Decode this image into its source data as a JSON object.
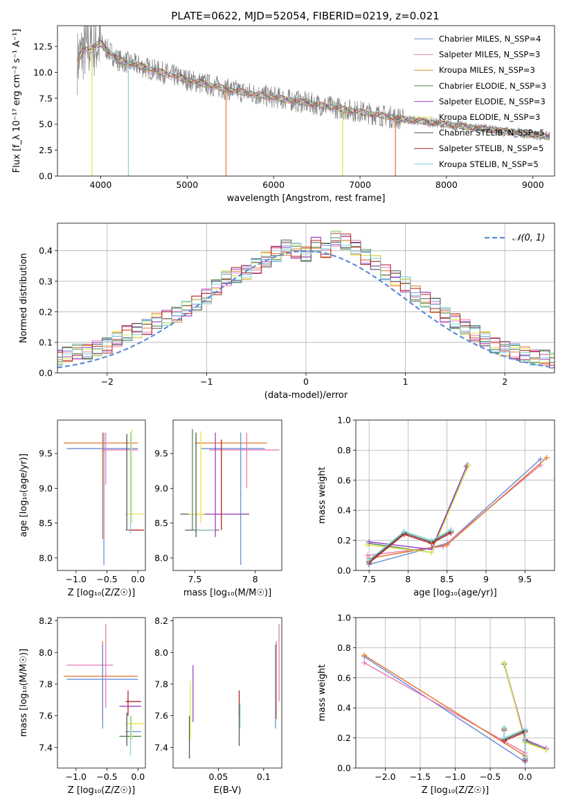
{
  "chart_data": [
    {
      "id": "spectrum",
      "type": "line",
      "title": "PLATE=0622, MJD=52054, FIBERID=0219, z=0.021",
      "xlabel": "wavelength [Angstrom, rest frame]",
      "ylabel": "Flux [f_λ 10⁻¹⁷ erg cm⁻² s⁻¹ A⁻¹]",
      "xlim": [
        3500,
        9250
      ],
      "ylim": [
        0,
        14.5
      ],
      "xticks": [
        4000,
        5000,
        6000,
        7000,
        8000,
        9000
      ],
      "yticks": [
        0.0,
        2.5,
        5.0,
        7.5,
        10.0,
        12.5
      ],
      "legend_position": "top-right",
      "data_envelope": {
        "x": [
          3730,
          3800,
          3900,
          4000,
          4200,
          4500,
          5000,
          5500,
          6000,
          6500,
          7000,
          7500,
          8000,
          8500,
          9000,
          9200
        ],
        "y": [
          11.0,
          12.2,
          12.4,
          12.8,
          11.2,
          10.5,
          9.3,
          8.3,
          7.6,
          6.9,
          6.2,
          5.5,
          5.0,
          4.5,
          4.0,
          3.8
        ]
      },
      "series": [
        {
          "name": "Chabrier MILES, N_SSP=4",
          "color": "#6b8fd6"
        },
        {
          "name": "Salpeter MILES, N_SSP=3",
          "color": "#e87ab5"
        },
        {
          "name": "Kroupa MILES, N_SSP=3",
          "color": "#c8962a"
        },
        {
          "name": "Chabrier ELODIE, N_SSP=3",
          "color": "#4f8a4f"
        },
        {
          "name": "Salpeter ELODIE, N_SSP=3",
          "color": "#9b3fc6"
        },
        {
          "name": "Kroupa ELODIE, N_SSP=3",
          "color": "#e3e34a"
        },
        {
          "name": "Chabrier STELIB, N_SSP=5",
          "color": "#555555"
        },
        {
          "name": "Salpeter STELIB, N_SSP=5",
          "color": "#b22222"
        },
        {
          "name": "Kroupa STELIB, N_SSP=5",
          "color": "#7fd3d6"
        }
      ]
    },
    {
      "id": "residuals",
      "type": "line",
      "xlabel": "(data-model)/error",
      "ylabel": "Normed distribution",
      "xlim": [
        -2.5,
        2.5
      ],
      "ylim": [
        0,
        0.49
      ],
      "xticks": [
        -2,
        -1,
        0,
        1,
        2
      ],
      "yticks": [
        0.0,
        0.1,
        0.2,
        0.3,
        0.4
      ],
      "grid": true,
      "legend_position": "top-right",
      "legend_label": "𝒩(0, 1)",
      "bin_width": 0.1,
      "histogram": [
        0.02,
        0.03,
        0.05,
        0.05,
        0.06,
        0.07,
        0.07,
        0.08,
        0.09,
        0.11,
        0.13,
        0.14,
        0.15,
        0.17,
        0.18,
        0.19,
        0.21,
        0.23,
        0.25,
        0.28,
        0.31,
        0.32,
        0.33,
        0.35,
        0.37,
        0.39,
        0.41,
        0.4,
        0.39,
        0.42,
        0.4,
        0.44,
        0.43,
        0.41,
        0.38,
        0.36,
        0.33,
        0.31,
        0.29,
        0.26,
        0.24,
        0.22,
        0.19,
        0.17,
        0.15,
        0.13,
        0.11,
        0.09,
        0.08,
        0.07,
        0.06,
        0.05,
        0.05,
        0.04,
        0.03,
        0.03,
        0.02
      ]
    },
    {
      "id": "z-vs-age",
      "type": "scatter",
      "xlabel": "Z [log₁₀(Z/Z☉)]",
      "ylabel": "age  [log₁₀(age/yr)]",
      "xlim": [
        -1.3,
        0.12
      ],
      "ylim": [
        7.82,
        9.98
      ],
      "xticks": [
        -1.0,
        -0.5,
        0.0
      ],
      "xticklabels": [
        "−1.0",
        "−0.5",
        "0.0"
      ],
      "yticks": [
        8.0,
        8.5,
        9.0,
        9.5
      ],
      "segments": [
        {
          "c": "#e4762c",
          "x": [
            -1.2,
            0.0
          ],
          "y": [
            9.65,
            9.65
          ]
        },
        {
          "c": "#6b8fd6",
          "x": [
            -1.15,
            0.0
          ],
          "y": [
            9.57,
            9.57
          ]
        },
        {
          "c": "#e87ab5",
          "x": [
            -0.58,
            0.0
          ],
          "y": [
            9.55,
            9.55
          ]
        },
        {
          "c": "#e3e34a",
          "x": [
            -0.2,
            0.1
          ],
          "y": [
            8.63,
            8.63
          ]
        },
        {
          "c": "#6b8fd6",
          "x": [
            -0.2,
            0.05
          ],
          "y": [
            8.4,
            8.4
          ]
        },
        {
          "c": "#b22222",
          "x": [
            -0.15,
            0.1
          ],
          "y": [
            8.4,
            8.4
          ]
        },
        {
          "c": "#6b8fd6",
          "x": [
            -0.55,
            -0.55
          ],
          "y": [
            7.9,
            9.8
          ]
        },
        {
          "c": "#e87ab5",
          "x": [
            -0.52,
            -0.52
          ],
          "y": [
            9.05,
            9.8
          ]
        },
        {
          "c": "#e4762c",
          "x": [
            -0.57,
            -0.57
          ],
          "y": [
            8.27,
            9.8
          ]
        },
        {
          "c": "#555555",
          "x": [
            -0.18,
            -0.18
          ],
          "y": [
            8.4,
            9.78
          ]
        },
        {
          "c": "#7fd3d6",
          "x": [
            -0.12,
            -0.12
          ],
          "y": [
            8.35,
            9.8
          ]
        },
        {
          "c": "#e3e34a",
          "x": [
            -0.1,
            -0.1
          ],
          "y": [
            8.5,
            9.85
          ]
        }
      ]
    },
    {
      "id": "mass-vs-age",
      "type": "scatter",
      "xlabel": "mass [log₁₀(M/M☉)]",
      "xlim": [
        7.32,
        8.22
      ],
      "ylim": [
        7.82,
        9.98
      ],
      "xticks": [
        7.5,
        8.0
      ],
      "yticks": [
        8.0,
        8.5,
        9.0,
        9.5
      ],
      "segments": [
        {
          "c": "#e4762c",
          "x": [
            7.5,
            8.1
          ],
          "y": [
            9.65,
            9.65
          ]
        },
        {
          "c": "#6b8fd6",
          "x": [
            7.55,
            8.08
          ],
          "y": [
            9.57,
            9.57
          ]
        },
        {
          "c": "#e87ab5",
          "x": [
            7.62,
            8.2
          ],
          "y": [
            9.55,
            9.55
          ]
        },
        {
          "c": "#555555",
          "x": [
            7.38,
            7.95
          ],
          "y": [
            8.63,
            8.63
          ]
        },
        {
          "c": "#e3e34a",
          "x": [
            7.45,
            7.82
          ],
          "y": [
            8.63,
            8.63
          ]
        },
        {
          "c": "#9b3fc6",
          "x": [
            7.58,
            7.92
          ],
          "y": [
            8.63,
            8.63
          ]
        },
        {
          "c": "#555555",
          "x": [
            7.42,
            7.65
          ],
          "y": [
            8.4,
            8.4
          ]
        },
        {
          "c": "#b22222",
          "x": [
            7.52,
            7.7
          ],
          "y": [
            8.4,
            8.4
          ]
        },
        {
          "c": "#7fd3d6",
          "x": [
            7.5,
            7.68
          ],
          "y": [
            8.4,
            8.4
          ]
        },
        {
          "c": "#4f8a4f",
          "x": [
            7.48,
            7.48
          ],
          "y": [
            8.4,
            9.85
          ]
        },
        {
          "c": "#555555",
          "x": [
            7.51,
            7.51
          ],
          "y": [
            8.3,
            9.8
          ]
        },
        {
          "c": "#e3e34a",
          "x": [
            7.55,
            7.55
          ],
          "y": [
            8.5,
            9.82
          ]
        },
        {
          "c": "#9b3fc6",
          "x": [
            7.67,
            7.67
          ],
          "y": [
            8.3,
            9.8
          ]
        },
        {
          "c": "#b22222",
          "x": [
            7.72,
            7.72
          ],
          "y": [
            8.4,
            9.7
          ]
        },
        {
          "c": "#6b8fd6",
          "x": [
            7.88,
            7.88
          ],
          "y": [
            7.9,
            9.8
          ]
        },
        {
          "c": "#e87ab5",
          "x": [
            7.93,
            7.93
          ],
          "y": [
            9.0,
            9.8
          ]
        }
      ]
    },
    {
      "id": "age-vs-weight",
      "type": "line",
      "xlabel": "age  [log₁₀(age/yr)]",
      "ylabel": "mass weight",
      "xlim": [
        7.33,
        9.88
      ],
      "ylim": [
        0,
        1
      ],
      "xticks": [
        7.5,
        8.0,
        8.5,
        9.0,
        9.5
      ],
      "yticks": [
        0.0,
        0.2,
        0.4,
        0.6,
        0.8,
        1.0
      ],
      "grid": true,
      "series": [
        {
          "c": "#6b8fd6",
          "x": [
            7.5,
            8.5,
            9.7
          ],
          "y": [
            0.04,
            0.18,
            0.74
          ]
        },
        {
          "c": "#e87ab5",
          "x": [
            7.48,
            8.45,
            9.7
          ],
          "y": [
            0.1,
            0.16,
            0.7
          ]
        },
        {
          "c": "#e4762c",
          "x": [
            7.5,
            8.5,
            9.78
          ],
          "y": [
            0.08,
            0.17,
            0.75
          ]
        },
        {
          "c": "#4f8a4f",
          "x": [
            7.5,
            8.3,
            8.75
          ],
          "y": [
            0.18,
            0.12,
            0.69
          ]
        },
        {
          "c": "#9b3fc6",
          "x": [
            7.5,
            8.3,
            8.76
          ],
          "y": [
            0.19,
            0.14,
            0.7
          ]
        },
        {
          "c": "#e3e34a",
          "x": [
            7.48,
            8.3,
            8.78
          ],
          "y": [
            0.17,
            0.12,
            0.7
          ]
        },
        {
          "c": "#555555",
          "x": [
            7.5,
            7.95,
            8.3,
            8.55
          ],
          "y": [
            0.06,
            0.25,
            0.19,
            0.26
          ]
        },
        {
          "c": "#b22222",
          "x": [
            7.5,
            7.95,
            8.3,
            8.55
          ],
          "y": [
            0.05,
            0.24,
            0.18,
            0.25
          ]
        },
        {
          "c": "#7fd3d6",
          "x": [
            7.5,
            7.95,
            8.3,
            8.55
          ],
          "y": [
            0.07,
            0.26,
            0.2,
            0.27
          ]
        }
      ]
    },
    {
      "id": "z-vs-mass",
      "type": "scatter",
      "xlabel": "Z [log₁₀(Z/Z☉)]",
      "ylabel": "mass [log₁₀(M/M☉)]",
      "xlim": [
        -1.3,
        0.12
      ],
      "ylim": [
        7.27,
        8.22
      ],
      "xticks": [
        -1.0,
        -0.5,
        0.0
      ],
      "xticklabels": [
        "−1.0",
        "−0.5",
        "0.0"
      ],
      "yticks": [
        7.4,
        7.6,
        7.8,
        8.0,
        8.2
      ],
      "segments": [
        {
          "c": "#e87ab5",
          "x": [
            -1.15,
            -0.4
          ],
          "y": [
            7.92,
            7.92
          ]
        },
        {
          "c": "#e4762c",
          "x": [
            -1.2,
            0.0
          ],
          "y": [
            7.85,
            7.85
          ]
        },
        {
          "c": "#6b8fd6",
          "x": [
            -1.15,
            0.0
          ],
          "y": [
            7.83,
            7.83
          ]
        },
        {
          "c": "#e87ab5",
          "x": [
            -0.52,
            -0.52
          ],
          "y": [
            7.65,
            8.18
          ]
        },
        {
          "c": "#e4762c",
          "x": [
            -0.57,
            -0.57
          ],
          "y": [
            7.58,
            8.07
          ]
        },
        {
          "c": "#6b8fd6",
          "x": [
            -0.57,
            -0.57
          ],
          "y": [
            7.52,
            8.05
          ]
        },
        {
          "c": "#b22222",
          "x": [
            -0.2,
            0.05
          ],
          "y": [
            7.69,
            7.69
          ]
        },
        {
          "c": "#9b3fc6",
          "x": [
            -0.3,
            0.05
          ],
          "y": [
            7.66,
            7.66
          ]
        },
        {
          "c": "#e3e34a",
          "x": [
            -0.2,
            0.1
          ],
          "y": [
            7.55,
            7.55
          ]
        },
        {
          "c": "#6b8fd6",
          "x": [
            -0.2,
            0.05
          ],
          "y": [
            7.5,
            7.5
          ]
        },
        {
          "c": "#4f8a4f",
          "x": [
            -0.3,
            0.05
          ],
          "y": [
            7.47,
            7.47
          ]
        },
        {
          "c": "#555555",
          "x": [
            -0.18,
            -0.18
          ],
          "y": [
            7.41,
            7.62
          ]
        },
        {
          "c": "#b22222",
          "x": [
            -0.16,
            -0.16
          ],
          "y": [
            7.6,
            7.76
          ]
        },
        {
          "c": "#7fd3d6",
          "x": [
            -0.12,
            -0.12
          ],
          "y": [
            7.35,
            7.6
          ]
        },
        {
          "c": "#e3e34a",
          "x": [
            -0.1,
            -0.1
          ],
          "y": [
            7.45,
            7.6
          ]
        }
      ]
    },
    {
      "id": "ebv-vs-mass",
      "type": "scatter",
      "xlabel": "E(B-V)",
      "xlim": [
        0.0,
        0.12
      ],
      "ylim": [
        7.27,
        8.22
      ],
      "xticks": [
        0.05,
        0.1
      ],
      "yticks": [
        7.4,
        7.6,
        7.8,
        8.0,
        8.2
      ],
      "segments": [
        {
          "c": "#555555",
          "x": [
            0.018,
            0.018
          ],
          "y": [
            7.33,
            7.6
          ]
        },
        {
          "c": "#e3e34a",
          "x": [
            0.019,
            0.019
          ],
          "y": [
            7.45,
            7.82
          ]
        },
        {
          "c": "#9b3fc6",
          "x": [
            0.022,
            0.022
          ],
          "y": [
            7.56,
            7.92
          ]
        },
        {
          "c": "#b22222",
          "x": [
            0.073,
            0.073
          ],
          "y": [
            7.6,
            7.76
          ]
        },
        {
          "c": "#555555",
          "x": [
            0.073,
            0.073
          ],
          "y": [
            7.41,
            7.68
          ]
        },
        {
          "c": "#7fd3d6",
          "x": [
            0.074,
            0.074
          ],
          "y": [
            7.52,
            7.68
          ]
        },
        {
          "c": "#6b8fd6",
          "x": [
            0.113,
            0.113
          ],
          "y": [
            7.52,
            8.05
          ]
        },
        {
          "c": "#e4762c",
          "x": [
            0.114,
            0.114
          ],
          "y": [
            7.58,
            8.07
          ]
        },
        {
          "c": "#e87ab5",
          "x": [
            0.117,
            0.117
          ],
          "y": [
            7.69,
            8.18
          ]
        }
      ]
    },
    {
      "id": "z-vs-weight",
      "type": "line",
      "xlabel": "Z [log₁₀(Z/Z☉)]",
      "ylabel": "mass weight",
      "xlim": [
        -2.42,
        0.42
      ],
      "ylim": [
        0,
        1
      ],
      "xticks": [
        -2.0,
        -1.5,
        -1.0,
        -0.5,
        0.0
      ],
      "xticklabels": [
        "−2.0",
        "−1.5",
        "−1.0",
        "−0.5",
        "0.0"
      ],
      "yticks": [
        0.0,
        0.2,
        0.4,
        0.6,
        0.8,
        1.0
      ],
      "grid": true,
      "series": [
        {
          "c": "#6b8fd6",
          "x": [
            -2.3,
            0.0
          ],
          "y": [
            0.74,
            0.04
          ]
        },
        {
          "c": "#e87ab5",
          "x": [
            -2.3,
            0.0
          ],
          "y": [
            0.7,
            0.1
          ]
        },
        {
          "c": "#e4762c",
          "x": [
            -2.3,
            0.0
          ],
          "y": [
            0.75,
            0.08
          ]
        },
        {
          "c": "#4f8a4f",
          "x": [
            -0.3,
            0.0,
            0.3
          ],
          "y": [
            0.69,
            0.18,
            0.12
          ]
        },
        {
          "c": "#9b3fc6",
          "x": [
            -0.3,
            0.0,
            0.3
          ],
          "y": [
            0.7,
            0.19,
            0.13
          ]
        },
        {
          "c": "#e3e34a",
          "x": [
            -0.3,
            0.0,
            0.3
          ],
          "y": [
            0.7,
            0.17,
            0.12
          ]
        },
        {
          "c": "#555555",
          "x": [
            -0.3,
            -0.3,
            0.0,
            0.0
          ],
          "y": [
            0.26,
            0.19,
            0.25,
            0.06
          ]
        },
        {
          "c": "#b22222",
          "x": [
            -0.3,
            -0.3,
            0.0,
            0.0
          ],
          "y": [
            0.25,
            0.18,
            0.24,
            0.05
          ]
        },
        {
          "c": "#7fd3d6",
          "x": [
            -0.3,
            -0.3,
            0.0,
            0.0
          ],
          "y": [
            0.27,
            0.2,
            0.26,
            0.07
          ]
        }
      ]
    }
  ]
}
